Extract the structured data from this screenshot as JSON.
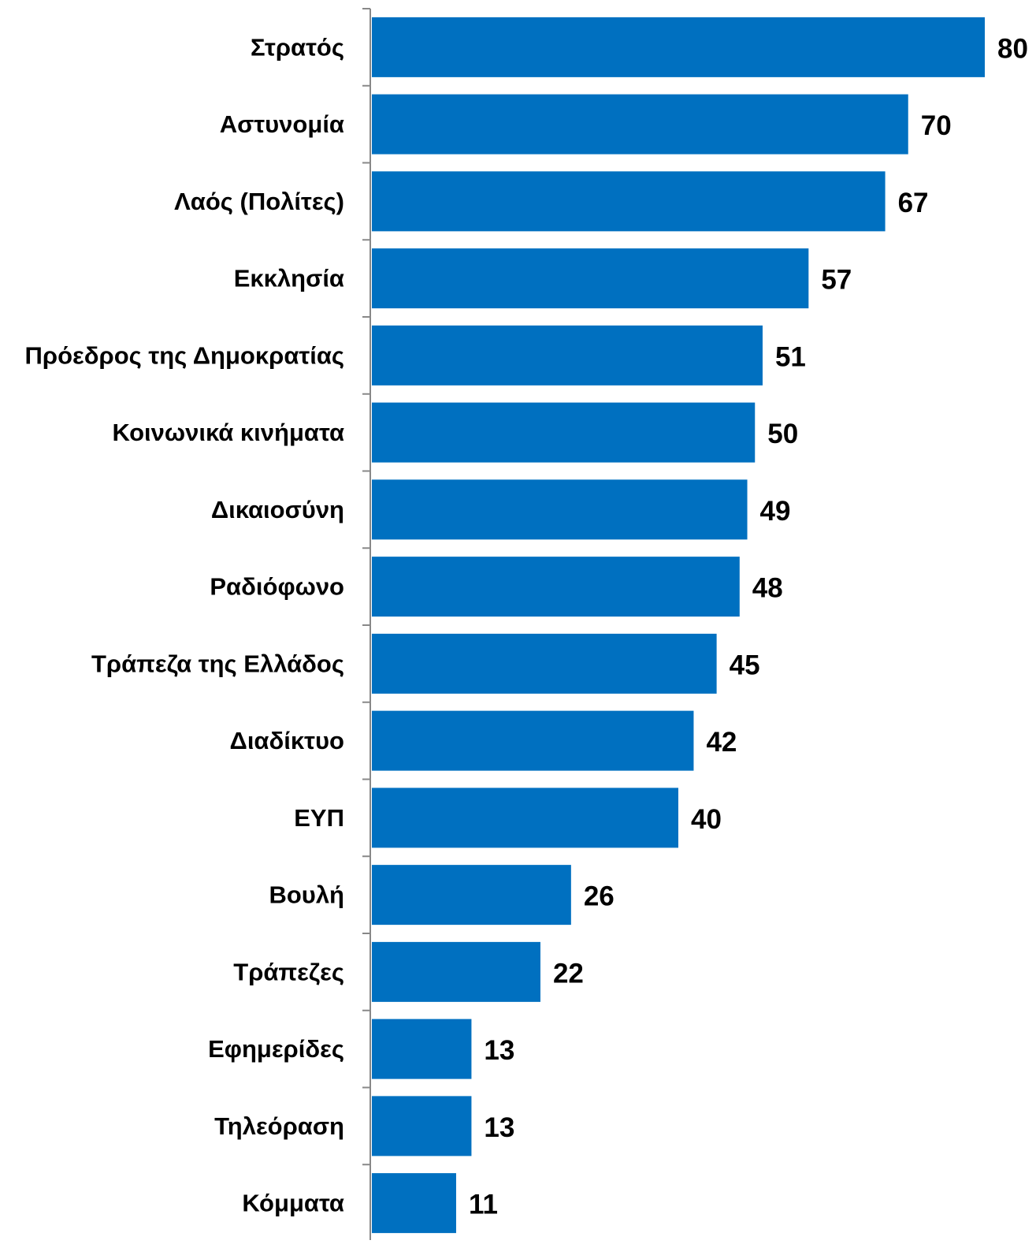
{
  "chart_data": {
    "type": "bar",
    "orientation": "horizontal",
    "categories": [
      "Στρατός",
      "Αστυνομία",
      "Λαός (Πολίτες)",
      "Εκκλησία",
      "Πρόεδρος της Δημοκρατίας",
      "Κοινωνικά κινήματα",
      "Δικαιοσύνη",
      "Ραδιόφωνο",
      "Τράπεζα της Ελλάδος",
      "Διαδίκτυο",
      "ΕΥΠ",
      "Βουλή",
      "Τράπεζες",
      "Εφημερίδες",
      "Τηλεόραση",
      "Κόμματα"
    ],
    "values": [
      80,
      70,
      67,
      57,
      51,
      50,
      49,
      48,
      45,
      42,
      40,
      26,
      22,
      13,
      13,
      11
    ],
    "value_labels": [
      "80",
      "70",
      "67",
      "57",
      "51",
      "50",
      "49",
      "48",
      "45",
      "42",
      "40",
      "26",
      "22",
      "13",
      "13",
      "11"
    ],
    "xlim": [
      0,
      80
    ],
    "bar_color": "#0070C0",
    "axis_color": "#888888",
    "grid": false,
    "legend": "none",
    "data_labels": "outside-end"
  }
}
